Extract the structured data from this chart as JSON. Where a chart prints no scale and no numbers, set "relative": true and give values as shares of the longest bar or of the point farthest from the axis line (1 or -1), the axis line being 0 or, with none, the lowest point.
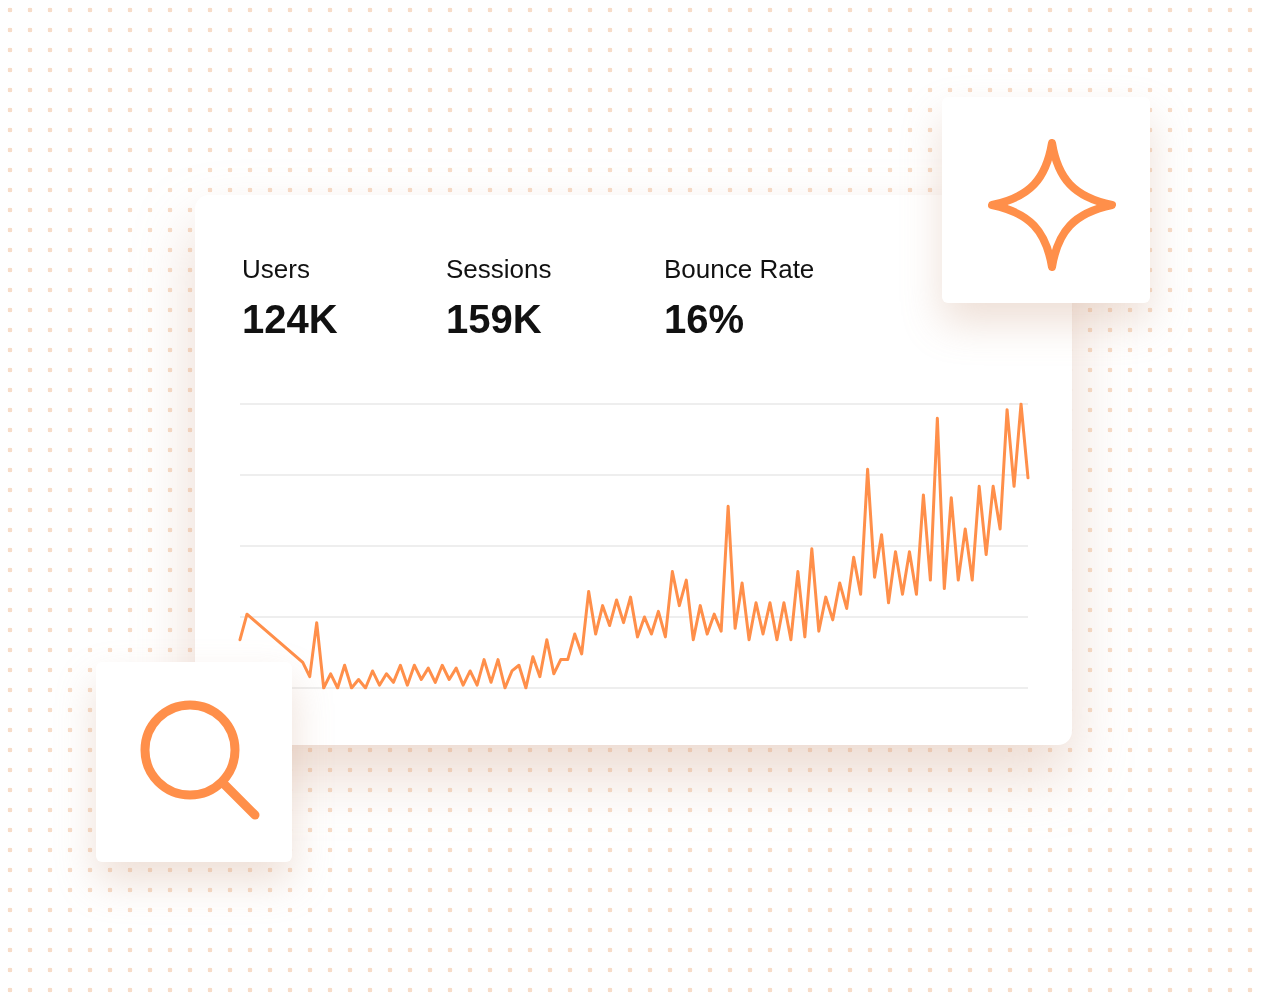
{
  "chart_data": {
    "type": "line",
    "relative": true,
    "grid": "y",
    "line_style": "solid",
    "annotations": [
      "Users",
      "124K",
      "Sessions",
      "159K",
      "Bounce Rate",
      "16%"
    ],
    "categories": [
      null,
      null,
      null,
      null,
      null,
      null,
      null,
      null,
      null,
      null,
      null,
      null,
      null,
      null,
      null,
      null,
      null,
      null,
      null,
      null,
      null,
      null,
      null,
      null,
      null,
      null,
      null,
      null,
      null,
      null,
      null,
      null,
      null,
      null,
      null,
      null,
      null,
      null,
      null,
      null,
      null,
      null,
      null,
      null,
      null,
      null,
      null,
      null,
      null,
      null,
      null,
      null,
      null,
      null,
      null,
      null,
      null,
      null,
      null,
      null,
      null,
      null,
      null,
      null,
      null,
      null,
      null,
      null,
      null,
      null,
      null,
      null,
      null,
      null,
      null,
      null,
      null,
      null,
      null,
      null,
      null,
      null,
      null,
      null,
      null,
      null,
      null,
      null,
      null,
      null,
      null,
      null,
      null,
      null,
      null,
      null,
      null,
      null,
      null,
      null,
      null,
      null,
      null,
      null,
      null,
      null,
      null,
      null,
      null,
      null,
      null,
      null,
      null,
      null
    ],
    "series": [
      {
        "color": "#ff8f4a",
        "values": [
          0.17,
          0.26,
          null,
          null,
          null,
          null,
          null,
          null,
          null,
          0.09,
          0.04,
          0.23,
          0,
          0.05,
          0,
          0.08,
          0,
          0.03,
          0,
          0.06,
          0.01,
          0.05,
          0.02,
          0.08,
          0.01,
          0.08,
          0.03,
          0.07,
          0.02,
          0.08,
          0.03,
          0.07,
          0.01,
          0.06,
          0.01,
          0.1,
          0.02,
          0.1,
          0,
          0.06,
          0.08,
          0,
          0.11,
          0.04,
          0.17,
          0.05,
          0.1,
          0.1,
          0.19,
          0.12,
          0.34,
          0.19,
          0.29,
          0.22,
          0.31,
          0.23,
          0.32,
          0.18,
          0.25,
          0.19,
          0.27,
          0.18,
          0.41,
          0.29,
          0.38,
          0.17,
          0.29,
          0.19,
          0.26,
          0.2,
          0.64,
          0.21,
          0.37,
          0.17,
          0.3,
          0.19,
          0.3,
          0.17,
          0.3,
          0.17,
          0.41,
          0.18,
          0.49,
          0.2,
          0.32,
          0.24,
          0.37,
          0.28,
          0.46,
          0.33,
          0.77,
          0.39,
          0.54,
          0.3,
          0.48,
          0.33,
          0.48,
          0.33,
          0.68,
          0.38,
          0.95,
          0.35,
          0.67,
          0.38,
          0.56,
          0.38,
          0.71,
          0.47,
          0.71,
          0.56,
          0.98,
          0.71,
          1,
          0.74
        ]
      }
    ]
  }
}
